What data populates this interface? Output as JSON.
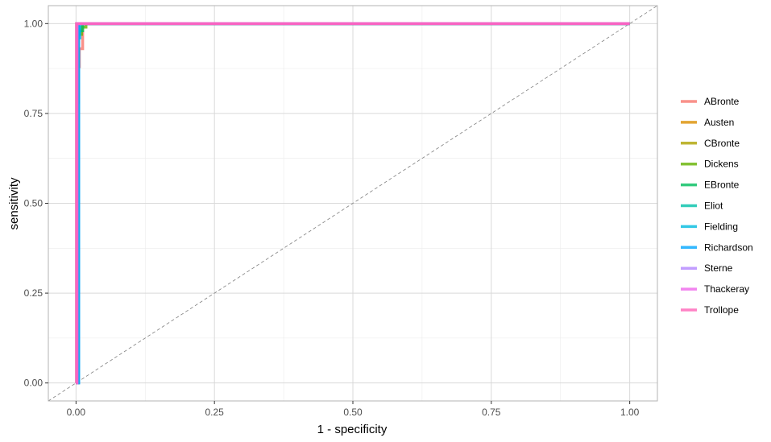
{
  "chart_data": {
    "type": "line",
    "title": "",
    "xlabel": "1 - specificity",
    "ylabel": "sensitivity",
    "xlim": [
      -0.05,
      1.05
    ],
    "ylim": [
      -0.05,
      1.05
    ],
    "x_ticks": [
      0.0,
      0.25,
      0.5,
      0.75,
      1.0
    ],
    "x_tick_labels": [
      "0.00",
      "0.25",
      "0.50",
      "0.75",
      "1.00"
    ],
    "y_ticks": [
      0.0,
      0.25,
      0.5,
      0.75,
      1.0
    ],
    "y_tick_labels": [
      "0.00",
      "0.25",
      "0.50",
      "0.75",
      "1.00"
    ],
    "grid": true,
    "legend_position": "right",
    "reference_line": {
      "x": [
        0,
        1
      ],
      "y": [
        0,
        1
      ],
      "style": "dashed",
      "color": "#808080"
    },
    "series": [
      {
        "name": "ABronte",
        "color": "#F8766D",
        "x": [
          0,
          0.002,
          0.002,
          0.004,
          0.004,
          0.006,
          0.006,
          0.012,
          0.012,
          1.0
        ],
        "y": [
          0,
          0,
          0.78,
          0.78,
          0.88,
          0.88,
          0.93,
          0.93,
          1.0,
          1.0
        ]
      },
      {
        "name": "Austen",
        "color": "#DB8E00",
        "x": [
          0,
          0.001,
          0.001,
          1.0
        ],
        "y": [
          0,
          0,
          1.0,
          1.0
        ]
      },
      {
        "name": "CBronte",
        "color": "#AEA200",
        "x": [
          0,
          0.002,
          0.002,
          0.005,
          0.005,
          1.0
        ],
        "y": [
          0,
          0,
          0.97,
          0.97,
          1.0,
          1.0
        ]
      },
      {
        "name": "Dickens",
        "color": "#64B200",
        "x": [
          0,
          0.004,
          0.004,
          0.01,
          0.01,
          0.018,
          0.018,
          1.0
        ],
        "y": [
          0,
          0,
          0.97,
          0.97,
          0.99,
          0.99,
          1.0,
          1.0
        ]
      },
      {
        "name": "EBronte",
        "color": "#00BD5C",
        "x": [
          0,
          0.003,
          0.003,
          0.012,
          0.012,
          1.0
        ],
        "y": [
          0,
          0,
          0.98,
          0.98,
          1.0,
          1.0
        ]
      },
      {
        "name": "Eliot",
        "color": "#00C1A7",
        "x": [
          0,
          0.002,
          0.002,
          1.0
        ],
        "y": [
          0,
          0,
          1.0,
          1.0
        ]
      },
      {
        "name": "Fielding",
        "color": "#00BADE",
        "x": [
          0,
          0.003,
          0.003,
          0.007,
          0.007,
          1.0
        ],
        "y": [
          0,
          0,
          0.96,
          0.96,
          1.0,
          1.0
        ]
      },
      {
        "name": "Richardson",
        "color": "#00A6FF",
        "x": [
          0,
          0.005,
          0.005,
          1.0
        ],
        "y": [
          0,
          0,
          1.0,
          1.0
        ]
      },
      {
        "name": "Sterne",
        "color": "#B385FF",
        "x": [
          0,
          0.001,
          0.001,
          1.0
        ],
        "y": [
          0,
          0,
          1.0,
          1.0
        ]
      },
      {
        "name": "Thackeray",
        "color": "#EF67EB",
        "x": [
          0,
          0.002,
          0.002,
          1.0
        ],
        "y": [
          0,
          0,
          1.0,
          1.0
        ]
      },
      {
        "name": "Trollope",
        "color": "#FF63B6",
        "x": [
          0,
          0.001,
          0.001,
          1.0
        ],
        "y": [
          0,
          0,
          1.0,
          1.0
        ]
      }
    ]
  }
}
